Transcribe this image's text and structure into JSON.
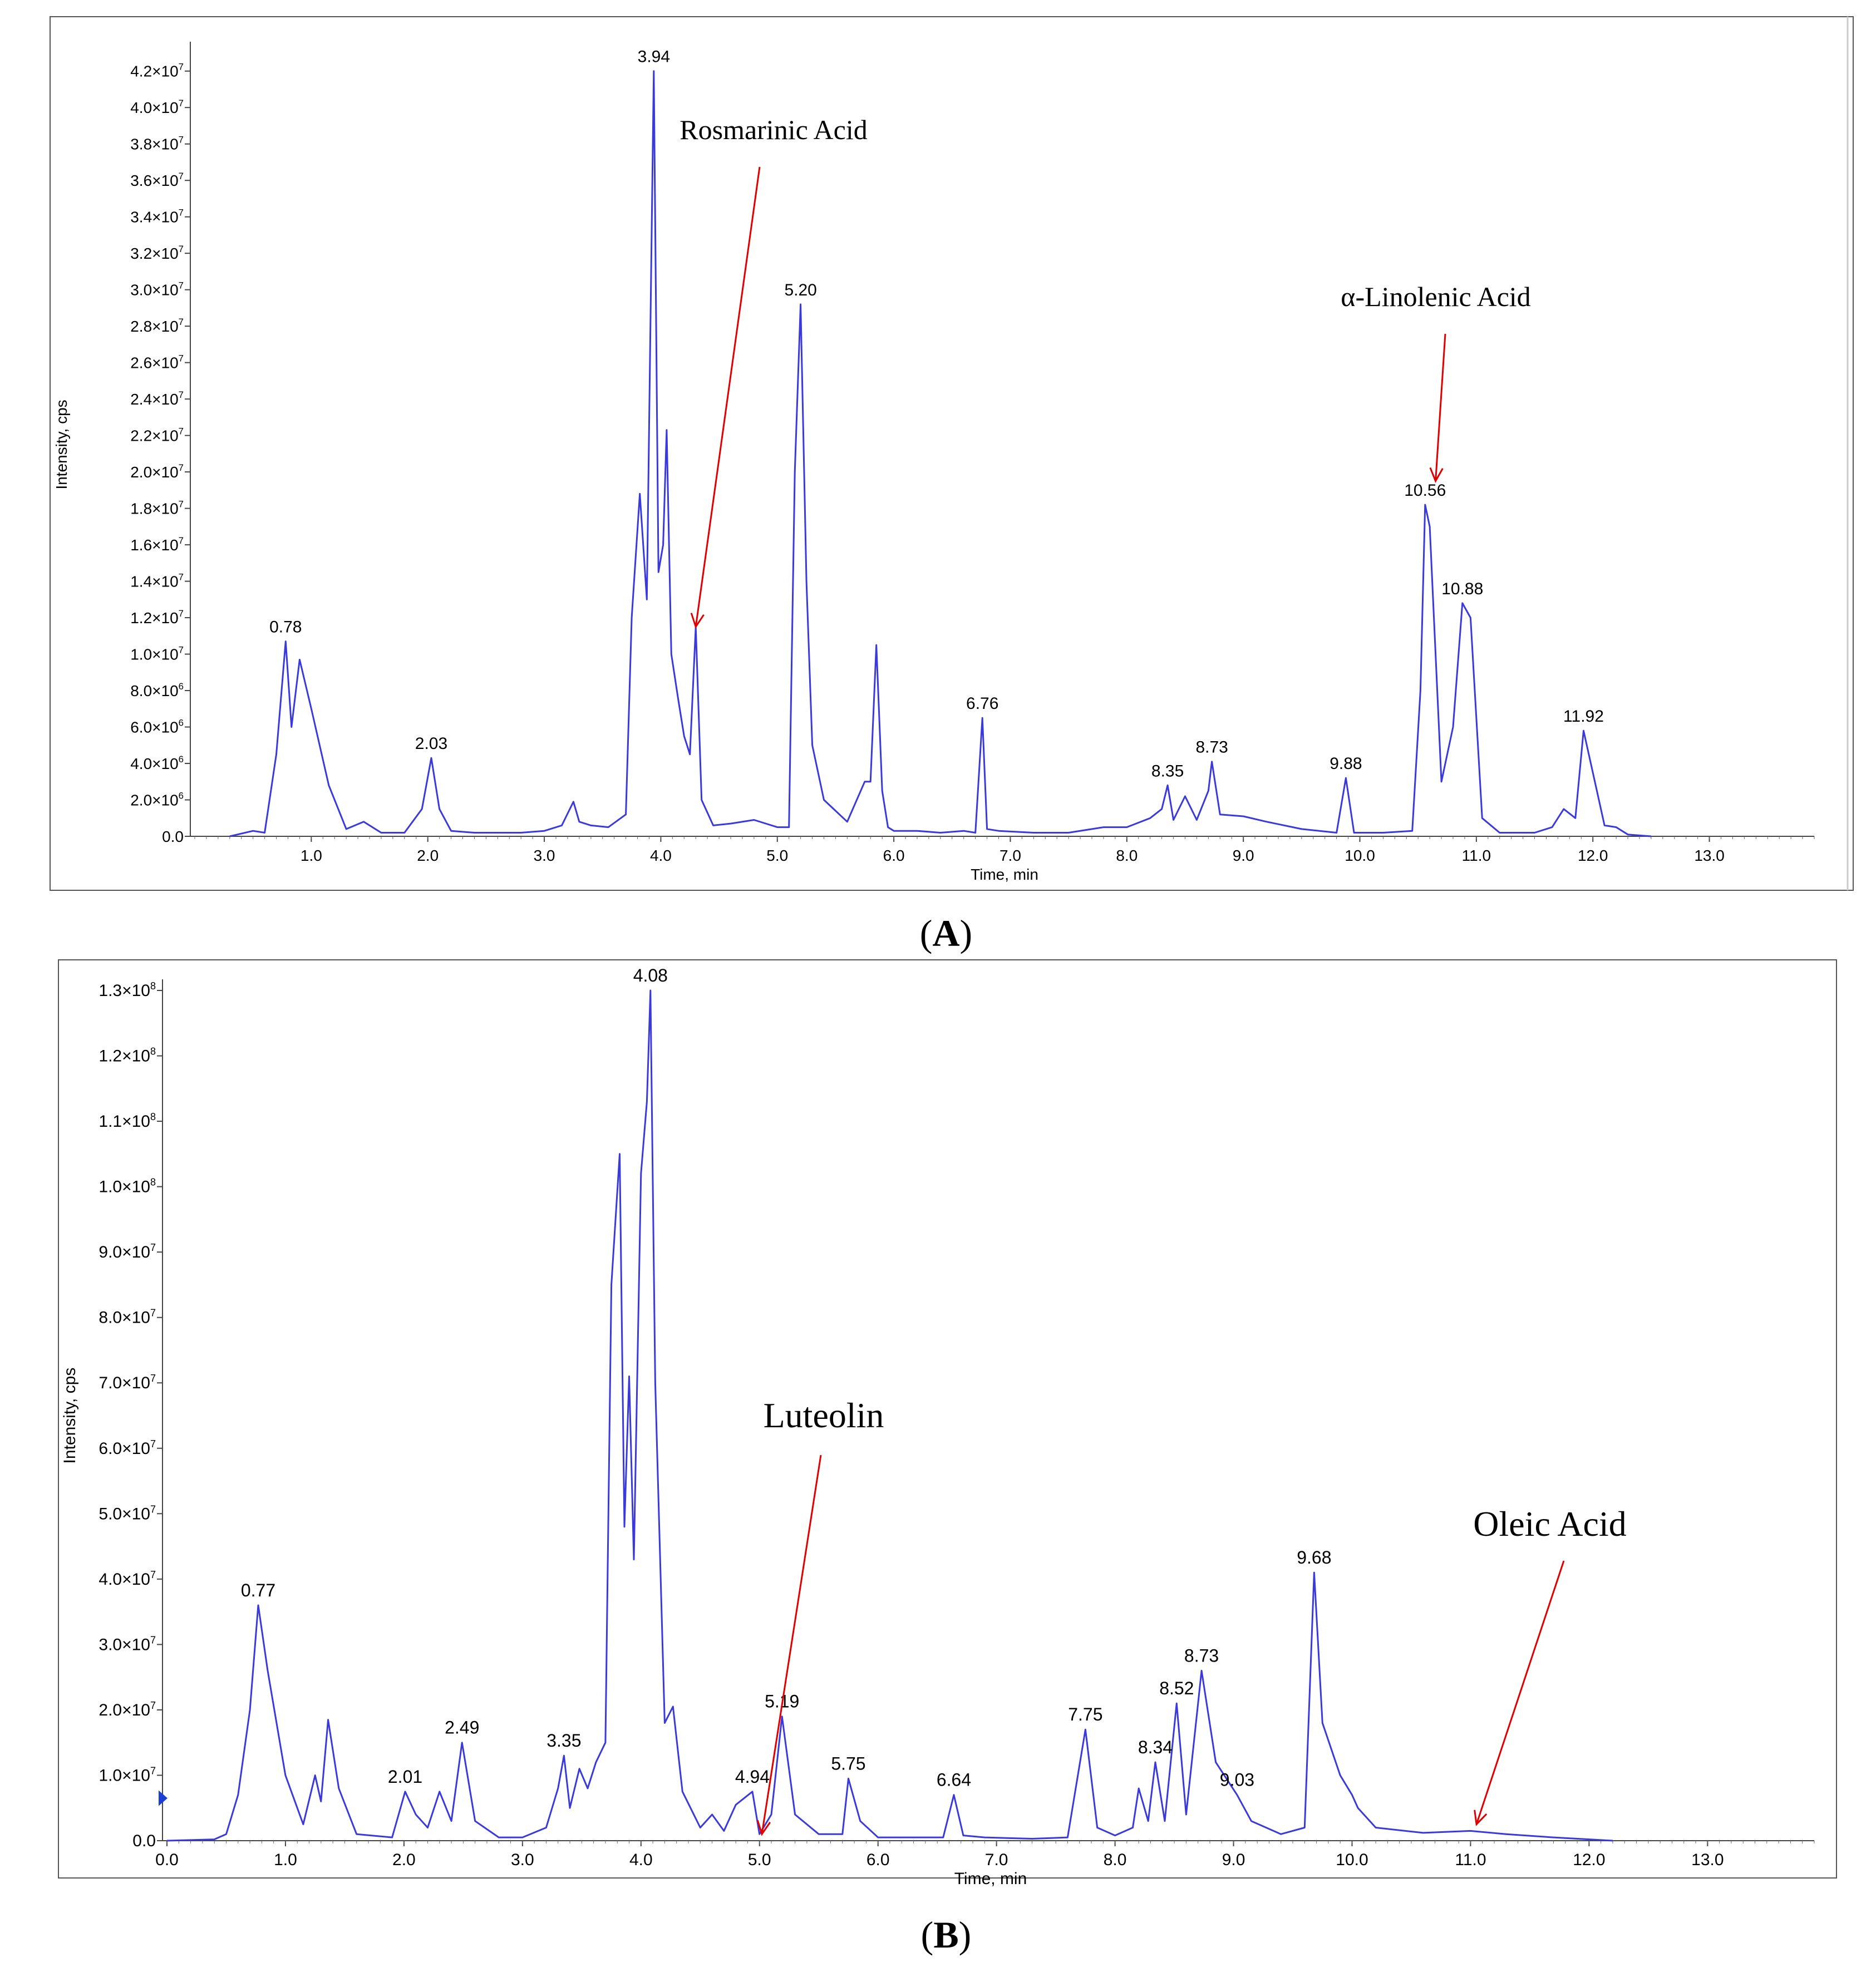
{
  "panels": [
    {
      "caption": "(A)",
      "caption_letter": "A",
      "chart_data": {
        "type": "line",
        "xlabel": "Time, min",
        "ylabel": "Intensity, cps",
        "xlim": [
          0.0,
          13.9
        ],
        "ylim": [
          0,
          43000000.0
        ],
        "x_ticks": [
          "1.0",
          "2.0",
          "3.0",
          "4.0",
          "5.0",
          "6.0",
          "7.0",
          "8.0",
          "9.0",
          "10.0",
          "11.0",
          "12.0",
          "13.0"
        ],
        "y_ticks": [
          {
            "base": "0.0",
            "exp": ""
          },
          {
            "base": "2.0×10",
            "exp": "6"
          },
          {
            "base": "4.0×10",
            "exp": "6"
          },
          {
            "base": "6.0×10",
            "exp": "6"
          },
          {
            "base": "8.0×10",
            "exp": "6"
          },
          {
            "base": "1.0×10",
            "exp": "7"
          },
          {
            "base": "1.2×10",
            "exp": "7"
          },
          {
            "base": "1.4×10",
            "exp": "7"
          },
          {
            "base": "1.6×10",
            "exp": "7"
          },
          {
            "base": "1.8×10",
            "exp": "7"
          },
          {
            "base": "2.0×10",
            "exp": "7"
          },
          {
            "base": "2.2×10",
            "exp": "7"
          },
          {
            "base": "2.4×10",
            "exp": "7"
          },
          {
            "base": "2.6×10",
            "exp": "7"
          },
          {
            "base": "2.8×10",
            "exp": "7"
          },
          {
            "base": "3.0×10",
            "exp": "7"
          },
          {
            "base": "3.2×10",
            "exp": "7"
          },
          {
            "base": "3.4×10",
            "exp": "7"
          },
          {
            "base": "3.6×10",
            "exp": "7"
          },
          {
            "base": "3.8×10",
            "exp": "7"
          },
          {
            "base": "4.0×10",
            "exp": "7"
          },
          {
            "base": "4.2×10",
            "exp": "7"
          }
        ],
        "y_tick_values": [
          0,
          2000000.0,
          4000000.0,
          6000000.0,
          8000000.0,
          10000000.0,
          12000000.0,
          14000000.0,
          16000000.0,
          18000000.0,
          20000000.0,
          22000000.0,
          24000000.0,
          26000000.0,
          28000000.0,
          30000000.0,
          32000000.0,
          34000000.0,
          36000000.0,
          38000000.0,
          40000000.0,
          42000000.0
        ],
        "series": [
          {
            "color": "#3a3adc",
            "x": [
              0.3,
              0.5,
              0.6,
              0.7,
              0.78,
              0.83,
              0.9,
              1.0,
              1.15,
              1.3,
              1.45,
              1.6,
              1.8,
              1.95,
              2.03,
              2.1,
              2.2,
              2.4,
              2.6,
              2.8,
              3.0,
              3.15,
              3.25,
              3.3,
              3.4,
              3.55,
              3.7,
              3.75,
              3.82,
              3.88,
              3.94,
              3.98,
              4.02,
              4.05,
              4.09,
              4.15,
              4.2,
              4.25,
              4.3,
              4.35,
              4.45,
              4.6,
              4.8,
              5.0,
              5.1,
              5.15,
              5.2,
              5.25,
              5.3,
              5.4,
              5.6,
              5.75,
              5.8,
              5.85,
              5.9,
              5.95,
              6.0,
              6.2,
              6.4,
              6.6,
              6.7,
              6.76,
              6.8,
              6.9,
              7.2,
              7.5,
              7.8,
              8.0,
              8.2,
              8.3,
              8.35,
              8.4,
              8.5,
              8.6,
              8.7,
              8.73,
              8.8,
              9.0,
              9.2,
              9.5,
              9.8,
              9.88,
              9.95,
              10.2,
              10.45,
              10.52,
              10.56,
              10.6,
              10.7,
              10.8,
              10.88,
              10.95,
              11.05,
              11.2,
              11.5,
              11.65,
              11.75,
              11.85,
              11.92,
              12.0,
              12.1,
              12.2,
              12.3,
              12.5
            ],
            "y": [
              0.0,
              300000.0,
              200000.0,
              4500000.0,
              10700000.0,
              6000000.0,
              9700000.0,
              7000000.0,
              2800000.0,
              400000.0,
              800000.0,
              200000.0,
              200000.0,
              1500000.0,
              4300000.0,
              1500000.0,
              300000.0,
              200000.0,
              200000.0,
              200000.0,
              300000.0,
              600000.0,
              1900000.0,
              800000.0,
              600000.0,
              500000.0,
              1200000.0,
              12000000.0,
              18800000.0,
              13000000.0,
              42000000.0,
              14500000.0,
              16000000.0,
              22300000.0,
              10000000.0,
              7500000.0,
              5500000.0,
              4500000.0,
              11500000.0,
              2000000.0,
              600000.0,
              700000.0,
              900000.0,
              500000.0,
              500000.0,
              20000000.0,
              29200000.0,
              14000000.0,
              5000000.0,
              2000000.0,
              800000.0,
              3000000.0,
              3000000.0,
              10500000.0,
              2500000.0,
              500000.0,
              300000.0,
              300000.0,
              200000.0,
              300000.0,
              200000.0,
              6500000.0,
              400000.0,
              300000.0,
              200000.0,
              200000.0,
              500000.0,
              500000.0,
              1000000.0,
              1500000.0,
              2800000.0,
              900000.0,
              2200000.0,
              900000.0,
              2500000.0,
              4100000.0,
              1200000.0,
              1100000.0,
              800000.0,
              400000.0,
              200000.0,
              3200000.0,
              200000.0,
              200000.0,
              300000.0,
              8000000.0,
              18200000.0,
              17000000.0,
              3000000.0,
              6000000.0,
              12800000.0,
              12000000.0,
              1000000.0,
              200000.0,
              200000.0,
              500000.0,
              1500000.0,
              1000000.0,
              5800000.0,
              3500000.0,
              600000.0,
              500000.0,
              100000.0,
              0.0
            ]
          }
        ],
        "peak_labels": [
          {
            "x": 0.78,
            "y": 10700000.0,
            "label": "0.78"
          },
          {
            "x": 2.03,
            "y": 4300000.0,
            "label": "2.03"
          },
          {
            "x": 3.94,
            "y": 42000000.0,
            "label": "3.94"
          },
          {
            "x": 5.2,
            "y": 29200000.0,
            "label": "5.20"
          },
          {
            "x": 6.76,
            "y": 6500000.0,
            "label": "6.76"
          },
          {
            "x": 8.35,
            "y": 2800000.0,
            "label": "8.35"
          },
          {
            "x": 8.73,
            "y": 4100000.0,
            "label": "8.73"
          },
          {
            "x": 9.88,
            "y": 3200000.0,
            "label": "9.88"
          },
          {
            "x": 10.56,
            "y": 18200000.0,
            "label": "10.56"
          },
          {
            "x": 10.88,
            "y": 12800000.0,
            "label": "10.88"
          },
          {
            "x": 11.92,
            "y": 5800000.0,
            "label": "11.92"
          }
        ],
        "annotations": [
          {
            "text": "Rosmarinic Acid",
            "x": 4.3,
            "y": 11500000.0
          },
          {
            "text": "α-Linolenic Acid",
            "x": 10.65,
            "y": 19500000.0
          }
        ]
      }
    },
    {
      "caption": "(B)",
      "caption_letter": "B",
      "chart_data": {
        "type": "line",
        "xlabel": "Time, min",
        "ylabel": "Intensity, cps",
        "xlim": [
          0.0,
          13.9
        ],
        "ylim": [
          0,
          130000000.0
        ],
        "x_ticks": [
          "0.0",
          "1.0",
          "2.0",
          "3.0",
          "4.0",
          "5.0",
          "6.0",
          "7.0",
          "8.0",
          "9.0",
          "10.0",
          "11.0",
          "12.0",
          "13.0"
        ],
        "y_ticks": [
          {
            "base": "0.0",
            "exp": ""
          },
          {
            "base": "1.0×10",
            "exp": "7"
          },
          {
            "base": "2.0×10",
            "exp": "7"
          },
          {
            "base": "3.0×10",
            "exp": "7"
          },
          {
            "base": "4.0×10",
            "exp": "7"
          },
          {
            "base": "5.0×10",
            "exp": "7"
          },
          {
            "base": "6.0×10",
            "exp": "7"
          },
          {
            "base": "7.0×10",
            "exp": "7"
          },
          {
            "base": "8.0×10",
            "exp": "7"
          },
          {
            "base": "9.0×10",
            "exp": "7"
          },
          {
            "base": "1.0×10",
            "exp": "8"
          },
          {
            "base": "1.1×10",
            "exp": "8"
          },
          {
            "base": "1.2×10",
            "exp": "8"
          },
          {
            "base": "1.3×10",
            "exp": "8"
          }
        ],
        "y_tick_values": [
          0,
          10000000.0,
          20000000.0,
          30000000.0,
          40000000.0,
          50000000.0,
          60000000.0,
          70000000.0,
          80000000.0,
          90000000.0,
          100000000.0,
          110000000.0,
          120000000.0,
          130000000.0
        ],
        "series": [
          {
            "color": "#3a3adc",
            "x": [
              0.0,
              0.4,
              0.5,
              0.6,
              0.7,
              0.77,
              0.85,
              1.0,
              1.15,
              1.25,
              1.3,
              1.36,
              1.45,
              1.6,
              1.9,
              2.01,
              2.1,
              2.2,
              2.3,
              2.4,
              2.49,
              2.6,
              2.8,
              3.0,
              3.2,
              3.3,
              3.35,
              3.4,
              3.48,
              3.55,
              3.62,
              3.7,
              3.75,
              3.82,
              3.86,
              3.9,
              3.94,
              4.0,
              4.05,
              4.08,
              4.12,
              4.2,
              4.27,
              4.35,
              4.5,
              4.6,
              4.7,
              4.8,
              4.94,
              5.0,
              5.1,
              5.19,
              5.3,
              5.5,
              5.7,
              5.75,
              5.85,
              6.0,
              6.3,
              6.55,
              6.64,
              6.72,
              6.9,
              7.3,
              7.6,
              7.75,
              7.85,
              8.0,
              8.15,
              8.2,
              8.28,
              8.34,
              8.42,
              8.52,
              8.6,
              8.73,
              8.85,
              9.03,
              9.15,
              9.4,
              9.6,
              9.68,
              9.75,
              9.9,
              10.0,
              10.05,
              10.2,
              10.6,
              11.0,
              11.3,
              11.7,
              12.0,
              12.2
            ],
            "y": [
              0,
              200000.0,
              1000000.0,
              7000000.0,
              20000000.0,
              36000000.0,
              26000000.0,
              10000000.0,
              2500000.0,
              10000000.0,
              6000000.0,
              18500000.0,
              8000000.0,
              1000000.0,
              500000.0,
              7500000.0,
              4000000.0,
              2000000.0,
              7500000.0,
              3000000.0,
              15000000.0,
              3000000.0,
              500000.0,
              500000.0,
              2000000.0,
              8000000.0,
              13000000.0,
              5000000.0,
              11000000.0,
              8000000.0,
              12000000.0,
              15000000.0,
              85000000.0,
              105000000.0,
              48000000.0,
              71000000.0,
              43000000.0,
              102000000.0,
              113000000.0,
              130000000.0,
              70000000.0,
              18000000.0,
              20500000.0,
              7500000.0,
              2000000.0,
              4000000.0,
              1500000.0,
              5500000.0,
              7500000.0,
              1000000.0,
              4000000.0,
              19000000.0,
              4000000.0,
              1000000.0,
              1000000.0,
              9500000.0,
              3000000.0,
              500000.0,
              500000.0,
              500000.0,
              7000000.0,
              800000.0,
              500000.0,
              300000.0,
              500000.0,
              17000000.0,
              2000000.0,
              800000.0,
              2000000.0,
              8000000.0,
              3000000.0,
              12000000.0,
              3000000.0,
              21000000.0,
              4000000.0,
              26000000.0,
              12000000.0,
              7000000.0,
              3000000.0,
              1000000.0,
              2000000.0,
              41000000.0,
              18000000.0,
              10000000.0,
              7000000.0,
              5000000.0,
              2000000.0,
              1200000.0,
              1500000.0,
              1000000.0,
              500000.0,
              200000.0,
              0.0
            ]
          }
        ],
        "peak_labels": [
          {
            "x": 0.77,
            "y": 36000000.0,
            "label": "0.77"
          },
          {
            "x": 2.01,
            "y": 7500000.0,
            "label": "2.01"
          },
          {
            "x": 2.49,
            "y": 15000000.0,
            "label": "2.49"
          },
          {
            "x": 3.35,
            "y": 13000000.0,
            "label": "3.35"
          },
          {
            "x": 4.08,
            "y": 130000000.0,
            "label": "4.08"
          },
          {
            "x": 4.94,
            "y": 7500000.0,
            "label": "4.94"
          },
          {
            "x": 5.19,
            "y": 19000000.0,
            "label": "5.19"
          },
          {
            "x": 5.75,
            "y": 9500000.0,
            "label": "5.75"
          },
          {
            "x": 6.64,
            "y": 7000000.0,
            "label": "6.64"
          },
          {
            "x": 7.75,
            "y": 17000000.0,
            "label": "7.75"
          },
          {
            "x": 8.34,
            "y": 12000000.0,
            "label": "8.34"
          },
          {
            "x": 8.52,
            "y": 21000000.0,
            "label": "8.52"
          },
          {
            "x": 8.73,
            "y": 26000000.0,
            "label": "8.73"
          },
          {
            "x": 9.03,
            "y": 7000000.0,
            "label": "9.03"
          },
          {
            "x": 9.68,
            "y": 41000000.0,
            "label": "9.68"
          }
        ],
        "annotations": [
          {
            "text": "Luteolin",
            "x": 5.02,
            "y": 1000000.0
          },
          {
            "text": "Oleic Acid",
            "x": 11.05,
            "y": 2500000.0
          }
        ]
      }
    }
  ]
}
